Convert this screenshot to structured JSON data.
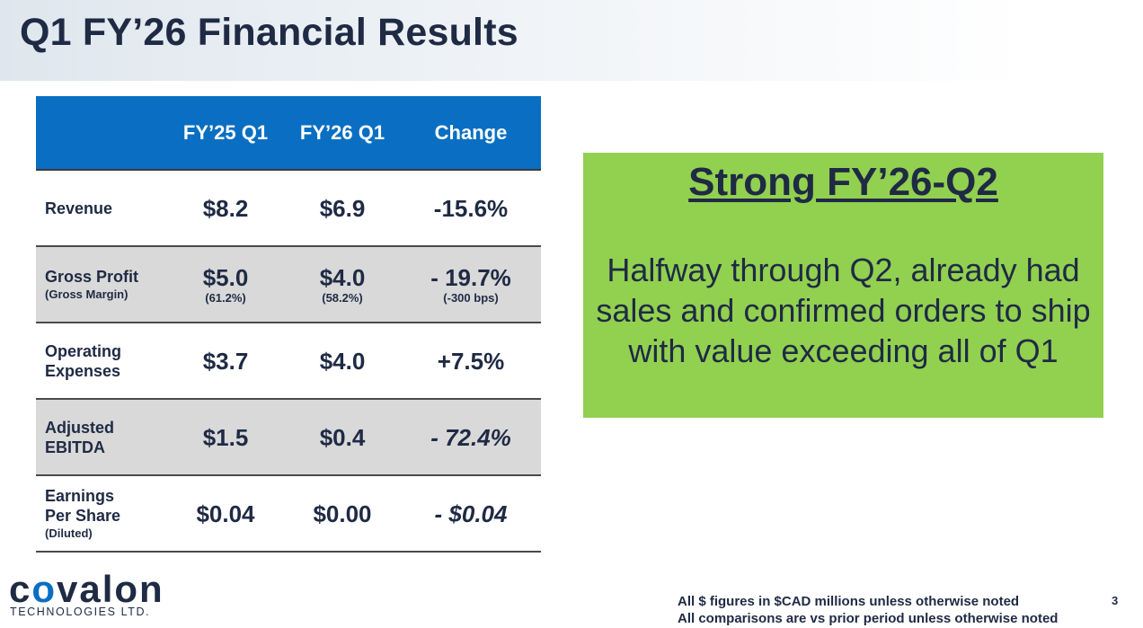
{
  "title": "Q1 FY’26 Financial Results",
  "table": {
    "columns": [
      "",
      "FY’25 Q1",
      "FY’26 Q1",
      "Change"
    ],
    "rows": [
      {
        "label": "Revenue",
        "sublabel": "",
        "fy25": "$8.2",
        "fy25_sub": "",
        "fy26": "$6.9",
        "fy26_sub": "",
        "change": "-15.6%",
        "change_sub": ""
      },
      {
        "label": "Gross Profit",
        "sublabel": "(Gross Margin)",
        "fy25": "$5.0",
        "fy25_sub": "(61.2%)",
        "fy26": "$4.0",
        "fy26_sub": "(58.2%)",
        "change": "- 19.7%",
        "change_sub": "(-300 bps)"
      },
      {
        "label": "Operating Expenses",
        "sublabel": "",
        "fy25": "$3.7",
        "fy25_sub": "",
        "fy26": "$4.0",
        "fy26_sub": "",
        "change": "+7.5%",
        "change_sub": ""
      },
      {
        "label": "Adjusted EBITDA",
        "sublabel": "",
        "fy25": "$1.5",
        "fy25_sub": "",
        "fy26": "$0.4",
        "fy26_sub": "",
        "change": "- 72.4%",
        "change_sub": ""
      },
      {
        "label": "Earnings Per Share",
        "sublabel": "(Diluted)",
        "fy25": "$0.04",
        "fy25_sub": "",
        "fy26": "$0.00",
        "fy26_sub": "",
        "change": "- $0.04",
        "change_sub": ""
      }
    ]
  },
  "callout": {
    "heading": "Strong FY’26-Q2",
    "body": "Halfway through Q2, already had sales and confirmed orders to ship with value exceeding all of Q1"
  },
  "logo": {
    "wordmark_start": "c",
    "wordmark_o": "o",
    "wordmark_end": "valon",
    "subtitle": "TECHNOLOGIES LTD."
  },
  "footnotes": [
    "All $ figures in $CAD millions unless otherwise noted",
    "All comparisons are vs prior period unless otherwise noted"
  ],
  "page_number": "3",
  "colors": {
    "header_blue": "#0a6fc2",
    "callout_green": "#92d050",
    "navy_text": "#1f2a44",
    "shaded_row": "#d9d9d9"
  }
}
